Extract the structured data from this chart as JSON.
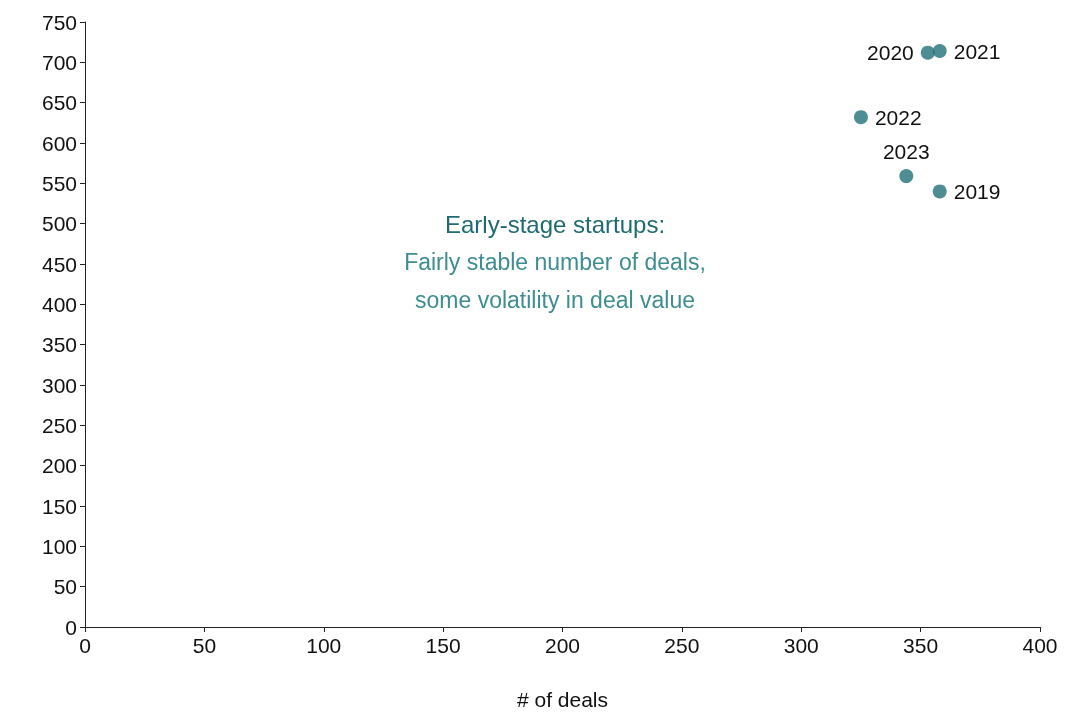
{
  "chart_data": {
    "type": "scatter",
    "xlabel": "# of deals",
    "x": [
      358,
      353,
      358,
      325,
      344
    ],
    "values": [
      540,
      712,
      714,
      632,
      559
    ],
    "color": "#23717a",
    "marker": "circle",
    "xlim": [
      0,
      400
    ],
    "xticks": [
      0,
      50,
      100,
      150,
      200,
      250,
      300,
      350,
      400
    ],
    "ylim": [
      0,
      750
    ],
    "yticks": [
      0,
      50,
      100,
      150,
      200,
      250,
      300,
      350,
      400,
      450,
      500,
      550,
      600,
      650,
      700,
      750
    ],
    "grid": false,
    "annotations": [
      {
        "text": "2019",
        "x": 358,
        "y": 540
      },
      {
        "text": "2020",
        "x": 353,
        "y": 712
      },
      {
        "text": "2021",
        "x": 358,
        "y": 714
      },
      {
        "text": "2022",
        "x": 325,
        "y": 632
      },
      {
        "text": "2023",
        "x": 344,
        "y": 559
      },
      "Early-stage startups:",
      "Fairly stable number of deals,\nsome volatility in deal value"
    ]
  }
}
